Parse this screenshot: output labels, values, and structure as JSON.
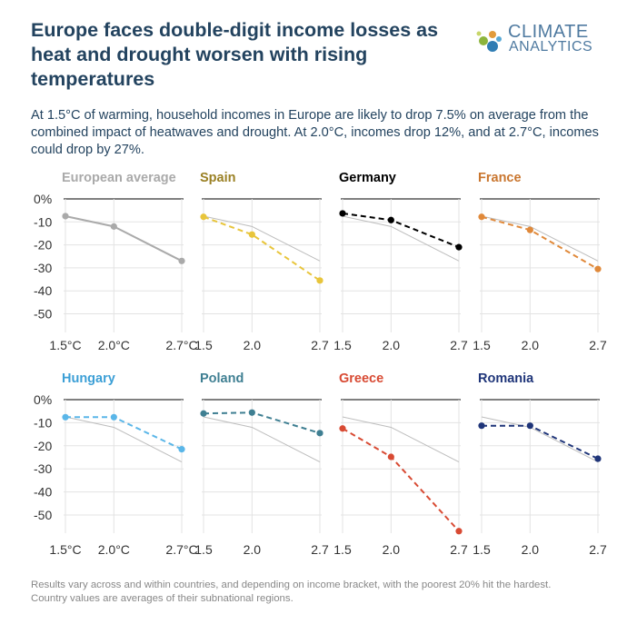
{
  "header": {
    "title": "Europe faces double-digit income losses as heat and drought worsen with rising temperatures",
    "subtitle": "At 1.5°C of warming, household incomes in Europe are likely to drop 7.5% on average from the combined impact of heatwaves and drought. At 2.0°C, incomes drop 12%, and at 2.7°C, incomes could drop by 27%."
  },
  "logo": {
    "line1": "CLIMATE",
    "line2": "ANALYTICS"
  },
  "footnote": {
    "line1": "Results vary across and within countries, and depending on income bracket, with the poorest 20% hit the hardest.",
    "line2": "Country values are averages of their subnational regions."
  },
  "chart_data": {
    "type": "line",
    "x": [
      1.5,
      2.0,
      2.7
    ],
    "ylim": [
      -55,
      0
    ],
    "ytick_labels": [
      "0%",
      "-10",
      "-20",
      "-30",
      "-40",
      "-50"
    ],
    "ytick_values": [
      0,
      -10,
      -20,
      -30,
      -40,
      -50
    ],
    "xtick_labels_first": [
      "1.5°C",
      "2.0°C",
      "2.7°C"
    ],
    "xtick_labels_other": [
      "1.5",
      "2.0",
      "2.7"
    ],
    "reference_series": {
      "name": "European average",
      "values": [
        -7.5,
        -12,
        -27
      ]
    },
    "panels": [
      {
        "name": "European average",
        "color": "#aaaaaa",
        "values": [
          -7.5,
          -12,
          -27
        ]
      },
      {
        "name": "Spain",
        "color": "#e8c53b",
        "title_color": "#9a8024",
        "values": [
          -7.8,
          -15.5,
          -35.5
        ]
      },
      {
        "name": "Germany",
        "color": "#000000",
        "values": [
          -6.3,
          -9.2,
          -21
        ]
      },
      {
        "name": "France",
        "color": "#e0893a",
        "title_color": "#c9762f",
        "values": [
          -7.8,
          -13.5,
          -30.5
        ]
      },
      {
        "name": "Hungary",
        "color": "#5ab6e8",
        "title_color": "#3c9fd6",
        "values": [
          -7.6,
          -7.6,
          -21.5
        ]
      },
      {
        "name": "Poland",
        "color": "#3f7f92",
        "values": [
          -6,
          -5.6,
          -14.5
        ]
      },
      {
        "name": "Greece",
        "color": "#d84a33",
        "values": [
          -12.5,
          -24.8,
          -57
        ]
      },
      {
        "name": "Romania",
        "color": "#1f3579",
        "values": [
          -11.3,
          -11.3,
          -25.6
        ]
      }
    ]
  }
}
